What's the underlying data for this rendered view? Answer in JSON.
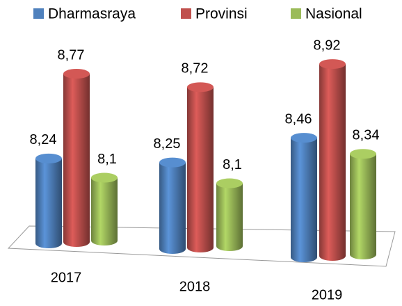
{
  "chart_data": {
    "type": "bar3d",
    "categories": [
      "2017",
      "2018",
      "2019"
    ],
    "series": [
      {
        "name": "Dharmasraya",
        "color": "#4f81bd",
        "values": [
          8.24,
          8.25,
          8.46
        ],
        "value_labels": [
          "8,24",
          "8,25",
          "8,46"
        ]
      },
      {
        "name": "Provinsi",
        "color": "#c0504d",
        "values": [
          8.77,
          8.72,
          8.92
        ],
        "value_labels": [
          "8,77",
          "8,72",
          "8,92"
        ]
      },
      {
        "name": "Nasional",
        "color": "#9bbb59",
        "values": [
          8.1,
          8.1,
          8.34
        ],
        "value_labels": [
          "8,1",
          "8,1",
          "8,34"
        ]
      }
    ],
    "ylim": [
      7.7,
      9.0
    ],
    "legend": "top"
  }
}
